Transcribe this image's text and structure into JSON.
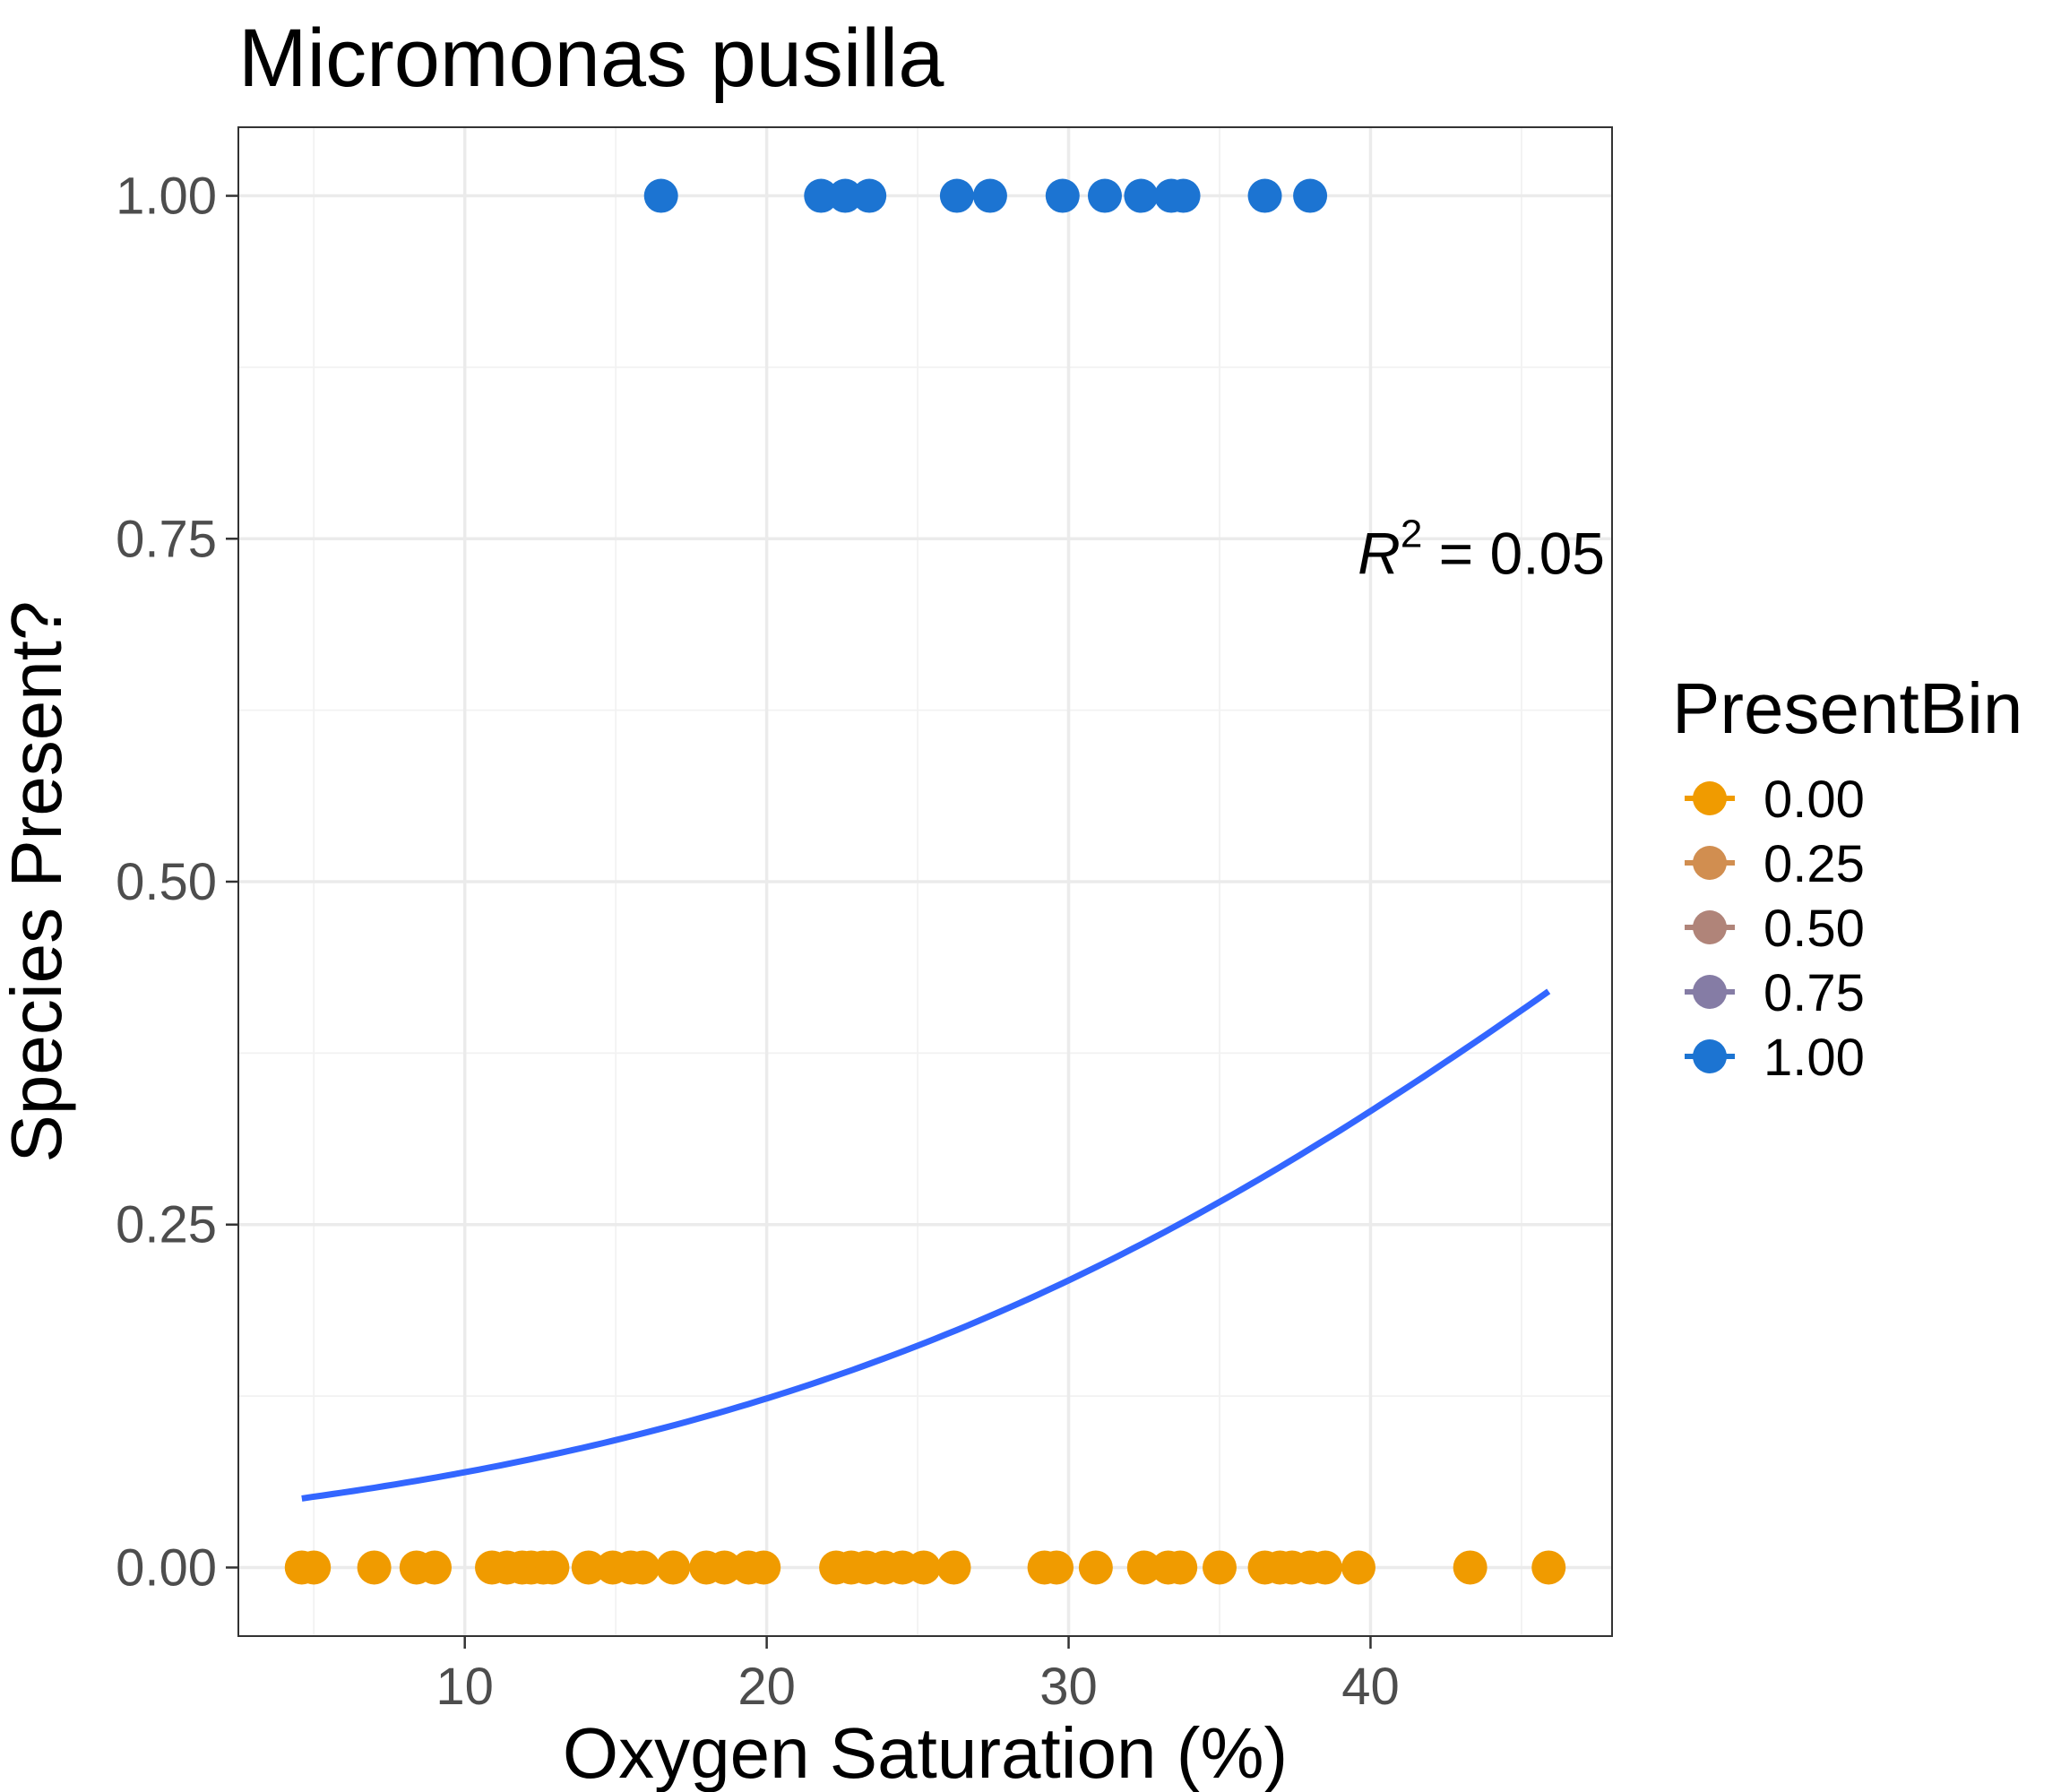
{
  "chart_data": {
    "type": "scatter",
    "title": "Micromonas pusilla",
    "xlabel": "Oxygen Saturation (%)",
    "ylabel": "Species Present?",
    "xlim": [
      2.5,
      48
    ],
    "ylim": [
      -0.05,
      1.05
    ],
    "x_ticks": [
      10,
      20,
      30,
      40
    ],
    "x_tick_labels": [
      "10",
      "20",
      "30",
      "40"
    ],
    "x_minor_ticks": [
      5,
      15,
      25,
      35,
      45
    ],
    "y_ticks": [
      0,
      0.25,
      0.5,
      0.75,
      1
    ],
    "y_tick_labels": [
      "0.00",
      "0.25",
      "0.50",
      "0.75",
      "1.00"
    ],
    "y_minor_ticks": [
      0.125,
      0.375,
      0.625,
      0.875
    ],
    "grid": true,
    "legend": {
      "title": "PresentBin",
      "placement": "right",
      "entries": [
        {
          "label": "0.00",
          "color": "#F09B00"
        },
        {
          "label": "0.25",
          "color": "#D18E50"
        },
        {
          "label": "0.50",
          "color": "#B08479"
        },
        {
          "label": "0.75",
          "color": "#857CA5"
        },
        {
          "label": "1.00",
          "color": "#1C74D2"
        }
      ]
    },
    "annotation": {
      "base": "R",
      "sup": "2",
      "rest": " = 0.05",
      "x": 48,
      "y": 0.74
    },
    "series": [
      {
        "present_bin": 1.0,
        "color": "#1C74D2",
        "x": [
          16.5,
          21.8,
          22.6,
          23.4,
          26.3,
          27.4,
          29.8,
          31.2,
          32.4,
          33.4,
          33.8,
          36.5,
          38.0
        ],
        "y": [
          1,
          1,
          1,
          1,
          1,
          1,
          1,
          1,
          1,
          1,
          1,
          1,
          1
        ]
      },
      {
        "present_bin": 0.0,
        "color": "#F09B00",
        "x": [
          4.6,
          5.0,
          7.0,
          8.4,
          9.0,
          10.9,
          11.4,
          11.9,
          12.2,
          12.6,
          12.9,
          14.1,
          14.9,
          15.5,
          15.9,
          16.9,
          18.0,
          18.6,
          19.4,
          19.9,
          22.3,
          22.8,
          23.3,
          23.9,
          24.5,
          25.2,
          26.2,
          29.2,
          29.6,
          30.9,
          32.5,
          33.3,
          33.7,
          35.0,
          36.5,
          37.0,
          37.4,
          38.0,
          38.5,
          39.6,
          43.3,
          45.9
        ],
        "y": [
          0,
          0,
          0,
          0,
          0,
          0,
          0,
          0,
          0,
          0,
          0,
          0,
          0,
          0,
          0,
          0,
          0,
          0,
          0,
          0,
          0,
          0,
          0,
          0,
          0,
          0,
          0,
          0,
          0,
          0,
          0,
          0,
          0,
          0,
          0,
          0,
          0,
          0,
          0,
          0,
          0,
          0
        ]
      }
    ],
    "fit_line": {
      "type": "logistic",
      "color": "#3366FF",
      "x_range": [
        4.6,
        45.9
      ],
      "intercept": -3.228,
      "slope": 0.0633
    }
  }
}
